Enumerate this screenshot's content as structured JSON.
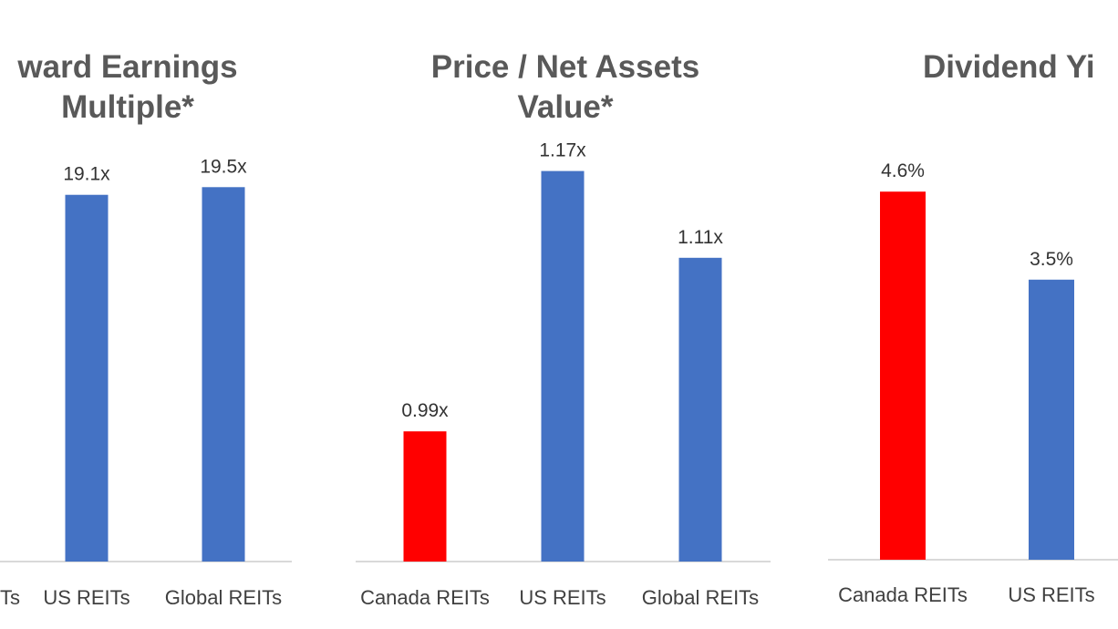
{
  "colors": {
    "canada": "#ff0000",
    "other": "#4472c4",
    "axis": "#d9d9d9"
  },
  "chart_data": [
    {
      "type": "bar",
      "title_lines": [
        "ward Earnings",
        "Multiple*"
      ],
      "categories": [
        "Canada REITs",
        "US REITs",
        "Global REITs"
      ],
      "visible_tick_labels": [
        "Ts",
        "US REITs",
        "Global REITs"
      ],
      "values": [
        null,
        19.1,
        19.5
      ],
      "value_labels": [
        "",
        "19.1x",
        "19.5x"
      ],
      "ylim": [
        0,
        22.6
      ],
      "grid": false
    },
    {
      "type": "bar",
      "title_lines": [
        "Price / Net Assets",
        "Value*"
      ],
      "categories": [
        "Canada REITs",
        "US REITs",
        "Global REITs"
      ],
      "visible_tick_labels": [
        "Canada REITs",
        "US REITs",
        "Global REITs"
      ],
      "values": [
        0.99,
        1.17,
        1.11
      ],
      "value_labels": [
        "0.99x",
        "1.17x",
        "1.11x"
      ],
      "ylim": [
        0.9,
        1.2
      ],
      "grid": false
    },
    {
      "type": "bar",
      "title_lines": [
        "Dividend Yi"
      ],
      "categories": [
        "Canada REITs",
        "US REITs"
      ],
      "visible_tick_labels": [
        "Canada REITs",
        "US REITs"
      ],
      "values": [
        4.6,
        3.5
      ],
      "value_labels": [
        "4.6%",
        "3.5%"
      ],
      "ylim": [
        0,
        5.4
      ],
      "grid": false
    }
  ]
}
